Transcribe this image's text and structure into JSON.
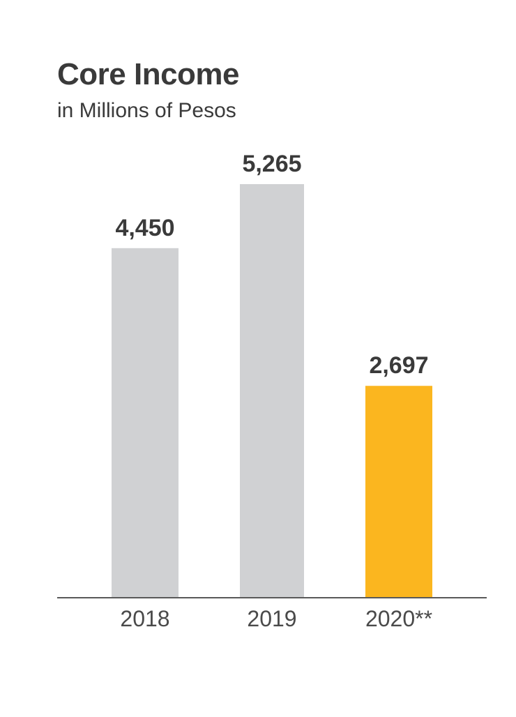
{
  "chart_data": {
    "type": "bar",
    "title": "Core Income",
    "subtitle": "in Millions of Pesos",
    "categories": [
      "2018",
      "2019",
      "2020**"
    ],
    "values": [
      4450,
      5265,
      2697
    ],
    "value_labels": [
      "4,450",
      "5,265",
      "2,697"
    ],
    "colors": [
      "#d0d1d3",
      "#d0d1d3",
      "#fbb61f"
    ],
    "axis_color": "#595959",
    "ylim": [
      0,
      5700
    ],
    "grid": false,
    "legend": "none"
  }
}
